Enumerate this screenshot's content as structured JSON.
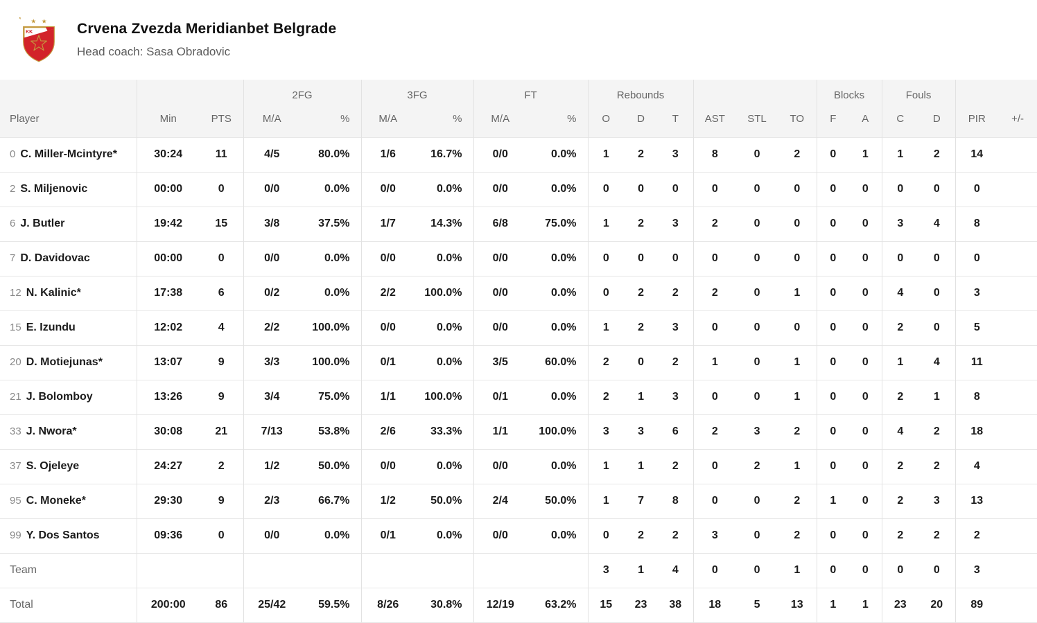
{
  "header": {
    "team_name": "Crvena Zvezda Meridianbet Belgrade",
    "coach_line": "Head coach: Sasa Obradovic",
    "logo": {
      "name": "kk-crvena-zvezda-crest",
      "red": "#d2232a",
      "gold": "#c49a3f",
      "monogram": "KK",
      "stars_above": 2
    }
  },
  "table": {
    "groups": [
      {
        "label": "",
        "span": 1
      },
      {
        "label": "",
        "span": 2
      },
      {
        "label": "2FG",
        "span": 2
      },
      {
        "label": "3FG",
        "span": 2
      },
      {
        "label": "FT",
        "span": 2
      },
      {
        "label": "Rebounds",
        "span": 3
      },
      {
        "label": "",
        "span": 3
      },
      {
        "label": "Blocks",
        "span": 2
      },
      {
        "label": "Fouls",
        "span": 2
      },
      {
        "label": "",
        "span": 2
      }
    ],
    "columns": [
      "Player",
      "Min",
      "PTS",
      "M/A",
      "%",
      "M/A",
      "%",
      "M/A",
      "%",
      "O",
      "D",
      "T",
      "AST",
      "STL",
      "TO",
      "F",
      "A",
      "C",
      "D",
      "PIR",
      "+/-"
    ],
    "rows": [
      {
        "num": "0",
        "name": "C. Miller-Mcintyre*",
        "stats": [
          "30:24",
          "11",
          "4/5",
          "80.0%",
          "1/6",
          "16.7%",
          "0/0",
          "0.0%",
          "1",
          "2",
          "3",
          "8",
          "0",
          "2",
          "0",
          "1",
          "1",
          "2",
          "14",
          ""
        ]
      },
      {
        "num": "2",
        "name": "S. Miljenovic",
        "stats": [
          "00:00",
          "0",
          "0/0",
          "0.0%",
          "0/0",
          "0.0%",
          "0/0",
          "0.0%",
          "0",
          "0",
          "0",
          "0",
          "0",
          "0",
          "0",
          "0",
          "0",
          "0",
          "0",
          ""
        ]
      },
      {
        "num": "6",
        "name": "J. Butler",
        "stats": [
          "19:42",
          "15",
          "3/8",
          "37.5%",
          "1/7",
          "14.3%",
          "6/8",
          "75.0%",
          "1",
          "2",
          "3",
          "2",
          "0",
          "0",
          "0",
          "0",
          "3",
          "4",
          "8",
          ""
        ]
      },
      {
        "num": "7",
        "name": "D. Davidovac",
        "stats": [
          "00:00",
          "0",
          "0/0",
          "0.0%",
          "0/0",
          "0.0%",
          "0/0",
          "0.0%",
          "0",
          "0",
          "0",
          "0",
          "0",
          "0",
          "0",
          "0",
          "0",
          "0",
          "0",
          ""
        ]
      },
      {
        "num": "12",
        "name": "N. Kalinic*",
        "stats": [
          "17:38",
          "6",
          "0/2",
          "0.0%",
          "2/2",
          "100.0%",
          "0/0",
          "0.0%",
          "0",
          "2",
          "2",
          "2",
          "0",
          "1",
          "0",
          "0",
          "4",
          "0",
          "3",
          ""
        ]
      },
      {
        "num": "15",
        "name": "E. Izundu",
        "stats": [
          "12:02",
          "4",
          "2/2",
          "100.0%",
          "0/0",
          "0.0%",
          "0/0",
          "0.0%",
          "1",
          "2",
          "3",
          "0",
          "0",
          "0",
          "0",
          "0",
          "2",
          "0",
          "5",
          ""
        ]
      },
      {
        "num": "20",
        "name": "D. Motiejunas*",
        "stats": [
          "13:07",
          "9",
          "3/3",
          "100.0%",
          "0/1",
          "0.0%",
          "3/5",
          "60.0%",
          "2",
          "0",
          "2",
          "1",
          "0",
          "1",
          "0",
          "0",
          "1",
          "4",
          "11",
          ""
        ]
      },
      {
        "num": "21",
        "name": "J. Bolomboy",
        "stats": [
          "13:26",
          "9",
          "3/4",
          "75.0%",
          "1/1",
          "100.0%",
          "0/1",
          "0.0%",
          "2",
          "1",
          "3",
          "0",
          "0",
          "1",
          "0",
          "0",
          "2",
          "1",
          "8",
          ""
        ]
      },
      {
        "num": "33",
        "name": "J. Nwora*",
        "stats": [
          "30:08",
          "21",
          "7/13",
          "53.8%",
          "2/6",
          "33.3%",
          "1/1",
          "100.0%",
          "3",
          "3",
          "6",
          "2",
          "3",
          "2",
          "0",
          "0",
          "4",
          "2",
          "18",
          ""
        ]
      },
      {
        "num": "37",
        "name": "S. Ojeleye",
        "stats": [
          "24:27",
          "2",
          "1/2",
          "50.0%",
          "0/0",
          "0.0%",
          "0/0",
          "0.0%",
          "1",
          "1",
          "2",
          "0",
          "2",
          "1",
          "0",
          "0",
          "2",
          "2",
          "4",
          ""
        ]
      },
      {
        "num": "95",
        "name": "C. Moneke*",
        "stats": [
          "29:30",
          "9",
          "2/3",
          "66.7%",
          "1/2",
          "50.0%",
          "2/4",
          "50.0%",
          "1",
          "7",
          "8",
          "0",
          "0",
          "2",
          "1",
          "0",
          "2",
          "3",
          "13",
          ""
        ]
      },
      {
        "num": "99",
        "name": "Y. Dos Santos",
        "stats": [
          "09:36",
          "0",
          "0/0",
          "0.0%",
          "0/1",
          "0.0%",
          "0/0",
          "0.0%",
          "0",
          "2",
          "2",
          "3",
          "0",
          "2",
          "0",
          "0",
          "2",
          "2",
          "2",
          ""
        ]
      }
    ],
    "team_row": {
      "label": "Team",
      "stats": [
        "",
        "",
        "",
        "",
        "",
        "",
        "",
        "",
        "3",
        "1",
        "4",
        "0",
        "0",
        "1",
        "0",
        "0",
        "0",
        "0",
        "3",
        ""
      ]
    },
    "total_row": {
      "label": "Total",
      "stats": [
        "200:00",
        "86",
        "25/42",
        "59.5%",
        "8/26",
        "30.8%",
        "12/19",
        "63.2%",
        "15",
        "23",
        "38",
        "18",
        "5",
        "13",
        "1",
        "1",
        "23",
        "20",
        "89",
        ""
      ]
    }
  }
}
